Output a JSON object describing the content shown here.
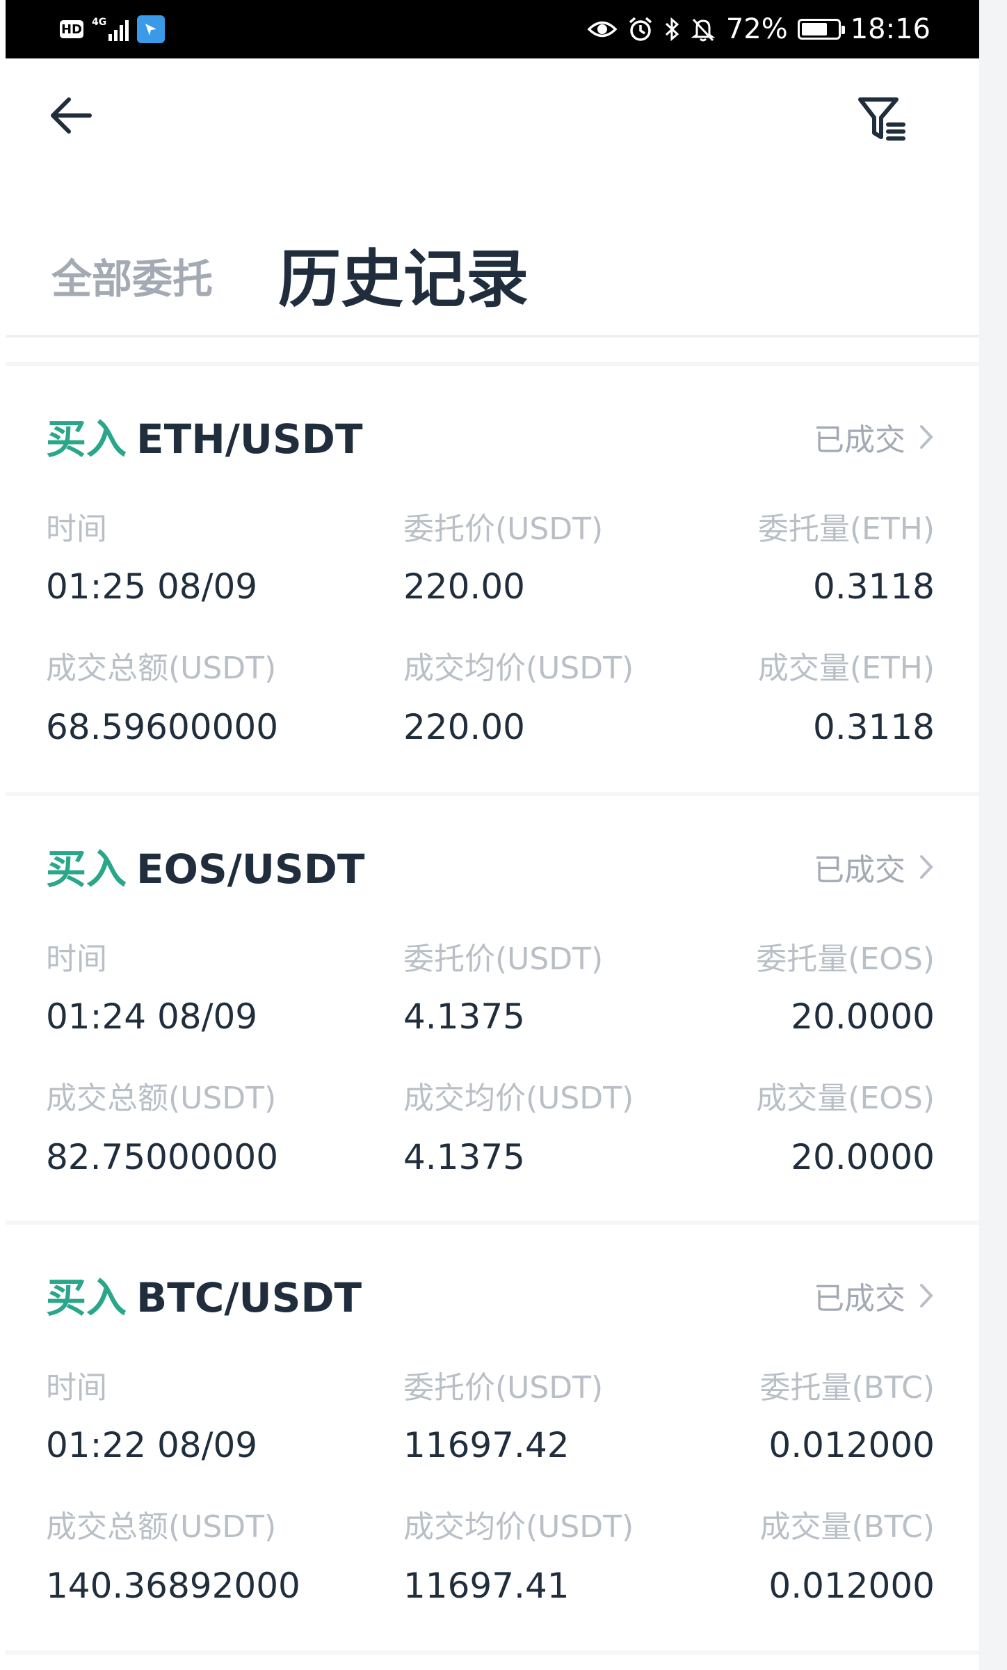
{
  "status_bar": {
    "left_badge": "HD",
    "network_label": "4G",
    "battery_text": "72%",
    "time": "18:16",
    "battery_level": 0.72
  },
  "nav": {
    "back_icon": "arrow-left-icon",
    "filter_icon": "filter-icon"
  },
  "tabs": {
    "all_orders": "全部委托",
    "history": "历史记录"
  },
  "status_chevron": "›",
  "orders": [
    {
      "side": "买入",
      "pair": "ETH/USDT",
      "status": "已成交",
      "time_label": "时间",
      "time": "01:25 08/09",
      "price_label": "委托价(USDT)",
      "price": "220.00",
      "amount_label": "委托量(ETH)",
      "amount": "0.3118",
      "total_label": "成交总额(USDT)",
      "total": "68.59600000",
      "avg_label": "成交均价(USDT)",
      "avg": "220.00",
      "filled_label": "成交量(ETH)",
      "filled": "0.3118"
    },
    {
      "side": "买入",
      "pair": "EOS/USDT",
      "status": "已成交",
      "time_label": "时间",
      "time": "01:24 08/09",
      "price_label": "委托价(USDT)",
      "price": "4.1375",
      "amount_label": "委托量(EOS)",
      "amount": "20.0000",
      "total_label": "成交总额(USDT)",
      "total": "82.75000000",
      "avg_label": "成交均价(USDT)",
      "avg": "4.1375",
      "filled_label": "成交量(EOS)",
      "filled": "20.0000"
    },
    {
      "side": "买入",
      "pair": "BTC/USDT",
      "status": "已成交",
      "time_label": "时间",
      "time": "01:22 08/09",
      "price_label": "委托价(USDT)",
      "price": "11697.42",
      "amount_label": "委托量(BTC)",
      "amount": "0.012000",
      "total_label": "成交总额(USDT)",
      "total": "140.36892000",
      "avg_label": "成交均价(USDT)",
      "avg": "11697.41",
      "filled_label": "成交量(BTC)",
      "filled": "0.012000"
    }
  ],
  "colors": {
    "buy_green": "#2aa68a",
    "text_dark": "#1f2d3d",
    "text_muted": "#b9bfc7"
  }
}
